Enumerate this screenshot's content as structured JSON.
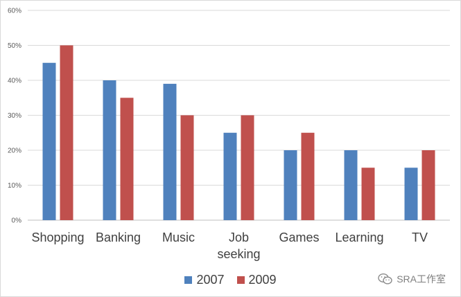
{
  "chart_data": {
    "type": "bar",
    "categories": [
      "Shopping",
      "Banking",
      "Music",
      "Job seeking",
      "Games",
      "Learning",
      "TV"
    ],
    "category_lines": [
      [
        "Shopping"
      ],
      [
        "Banking"
      ],
      [
        "Music"
      ],
      [
        "Job",
        "seeking"
      ],
      [
        "Games"
      ],
      [
        "Learning"
      ],
      [
        "TV"
      ]
    ],
    "series": [
      {
        "name": "2007",
        "color": "#4f81bd",
        "values": [
          45,
          40,
          39,
          25,
          20,
          20,
          15
        ]
      },
      {
        "name": "2009",
        "color": "#c0504d",
        "values": [
          50,
          35,
          30,
          30,
          25,
          15,
          20
        ]
      }
    ],
    "y_ticks": [
      "0%",
      "10%",
      "20%",
      "30%",
      "40%",
      "50%",
      "60%"
    ],
    "ylim": [
      0,
      60
    ],
    "grid": true,
    "legend_position": "bottom",
    "title": "",
    "xlabel": "",
    "ylabel": ""
  },
  "watermark": {
    "text": "SRA工作室",
    "icon": "wechat-icon"
  }
}
